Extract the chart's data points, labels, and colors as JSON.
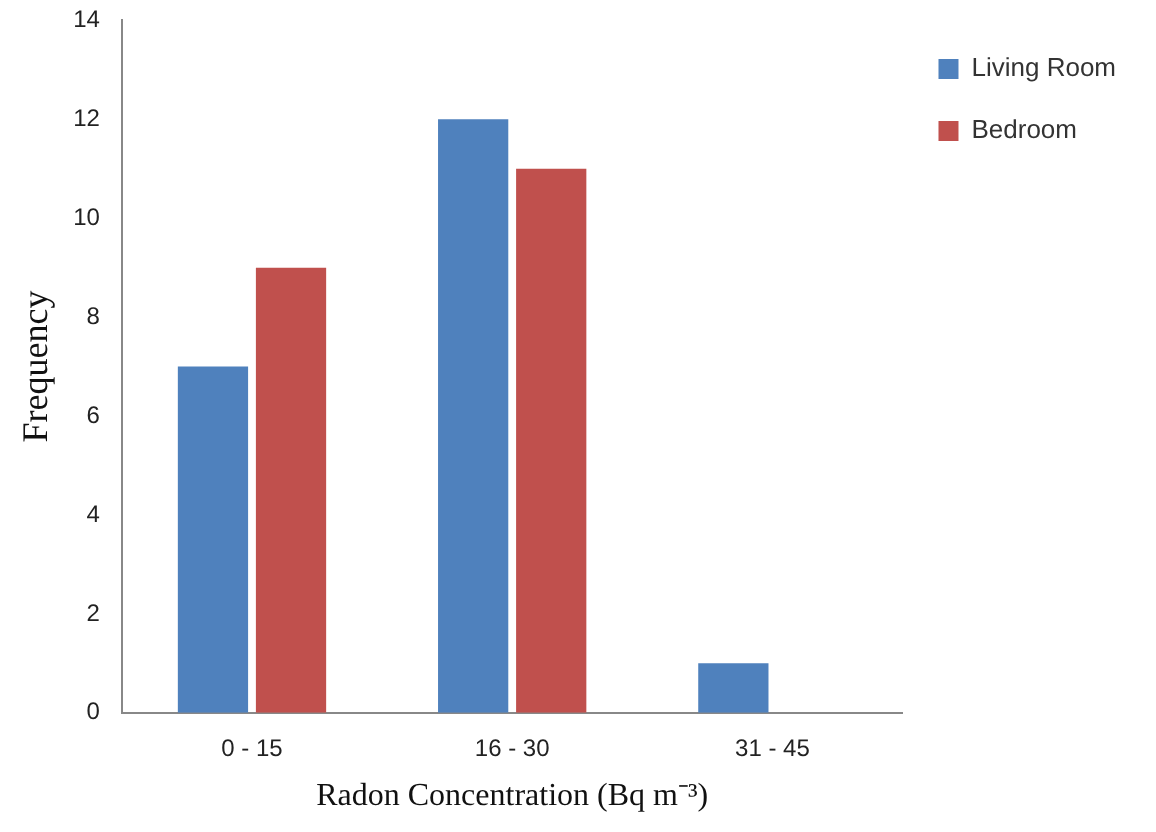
{
  "chart_data": {
    "type": "bar",
    "xlabel": "Radon Concentration (Bq m⁻³)",
    "ylabel": "Frequency",
    "categories": [
      "0 - 15",
      "16 - 30",
      "31 - 45"
    ],
    "series": [
      {
        "name": "Living Room",
        "color": "#4f81bd",
        "values": [
          7,
          12,
          1
        ]
      },
      {
        "name": "Bedroom",
        "color": "#c0504d",
        "values": [
          9,
          11,
          0
        ]
      }
    ],
    "ylim": [
      0,
      14
    ],
    "yticks": [
      0,
      2,
      4,
      6,
      8,
      10,
      12,
      14
    ],
    "grid": false,
    "legend": "top right"
  }
}
